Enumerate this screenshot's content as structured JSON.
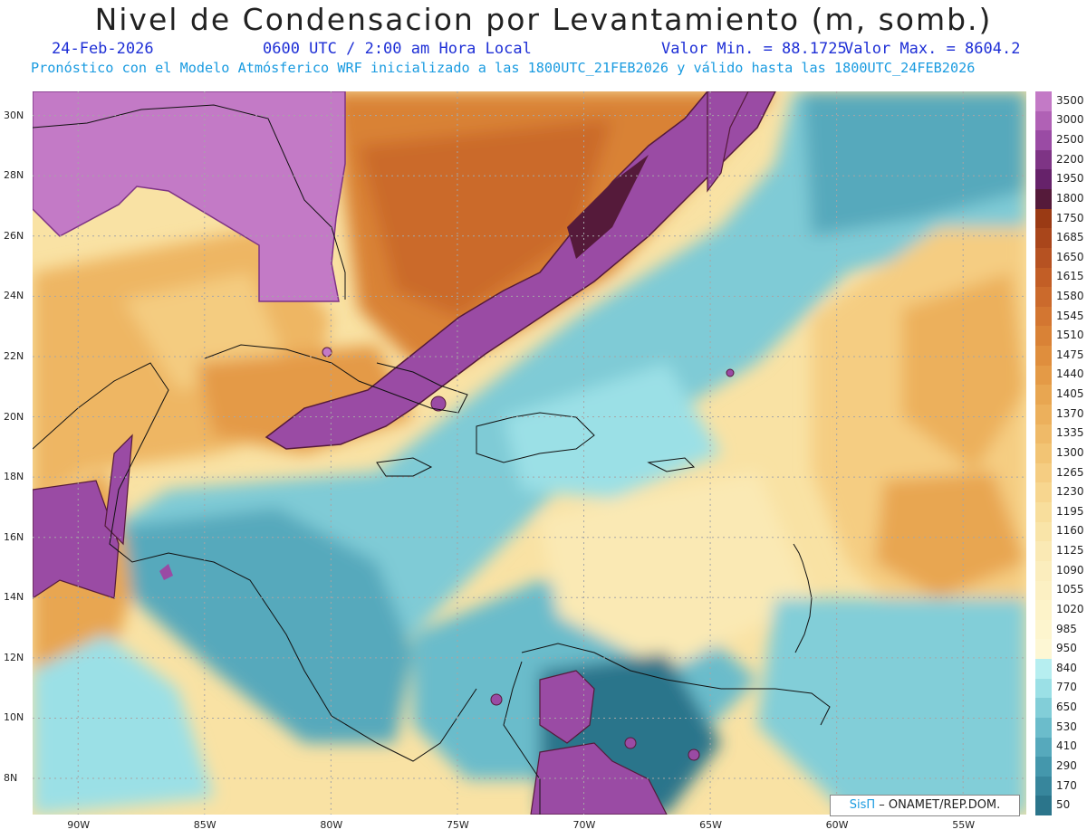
{
  "header": {
    "title": "Nivel de Condensacion por Levantamiento (m, somb.)",
    "date": "24-Feb-2026",
    "time": "0600 UTC / 2:00 am Hora Local",
    "min_label": "Valor Min. = 88.1725",
    "max_label": "Valor Max. = 8604.2",
    "forecast_line": "Pronóstico con el Modelo Atmósferico WRF inicializado a las 1800UTC_21FEB2026 y válido hasta las  1800UTC_24FEB2026"
  },
  "map": {
    "lat_labels": [
      "30N",
      "28N",
      "26N",
      "24N",
      "22N",
      "20N",
      "18N",
      "16N",
      "14N",
      "12N",
      "10N",
      "8N"
    ],
    "lon_labels": [
      "90W",
      "85W",
      "80W",
      "75W",
      "70W",
      "65W",
      "60W",
      "55W"
    ],
    "lat_range": [
      6.8,
      30.8
    ],
    "lon_range": [
      -91.8,
      -52.5
    ]
  },
  "colorbar": {
    "levels": [
      "3500",
      "3000",
      "2500",
      "2200",
      "1950",
      "1800",
      "1750",
      "1685",
      "1650",
      "1615",
      "1580",
      "1545",
      "1510",
      "1475",
      "1440",
      "1405",
      "1370",
      "1335",
      "1300",
      "1265",
      "1230",
      "1195",
      "1160",
      "1125",
      "1090",
      "1055",
      "1020",
      "985",
      "950",
      "840",
      "770",
      "650",
      "530",
      "410",
      "290",
      "170",
      "50"
    ],
    "colors": [
      "#c37ac6",
      "#b061b5",
      "#9a4ba4",
      "#7e3485",
      "#66226a",
      "#551a3a",
      "#9a3a14",
      "#a9461b",
      "#b65222",
      "#c25e26",
      "#cb6a2c",
      "#d37631",
      "#d98236",
      "#df8e3d",
      "#e49a46",
      "#e8a651",
      "#ecb05c",
      "#efba68",
      "#f2c474",
      "#f5cd82",
      "#f7d68f",
      "#f8de9c",
      "#f9e4a8",
      "#fae9b4",
      "#fbedbd",
      "#fcf0c3",
      "#fdf3c9",
      "#fdf5ce",
      "#fdf7d4",
      "#b6eef0",
      "#9be0e6",
      "#82ced8",
      "#6bbccb",
      "#56a9bc",
      "#4497ac",
      "#37869c",
      "#2b758b"
    ]
  },
  "credit": {
    "logo": "SisΠ",
    "text": "– ONAMET/REP.DOM."
  }
}
